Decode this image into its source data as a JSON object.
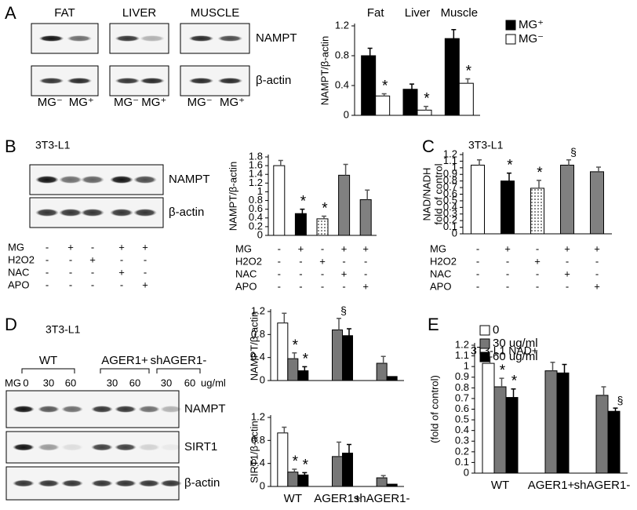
{
  "letters": [
    "A",
    "B",
    "C",
    "D",
    "E"
  ],
  "blot_a": {
    "columns": [
      "FAT",
      "LIVER",
      "MUSCLE"
    ],
    "rows": [
      "NAMPT",
      "β-actin"
    ],
    "lanes": [
      "MG⁻",
      "MG⁺",
      "MG⁻",
      "MG⁺",
      "MG⁻",
      "MG⁺"
    ]
  },
  "blot_b": {
    "title": "3T3-L1",
    "rows": [
      "NAMPT",
      "β-actin"
    ],
    "treatments": {
      "names": [
        "MG",
        "H2O2",
        "NAC",
        "APO"
      ],
      "signs": [
        [
          "-",
          "+",
          "-",
          "+",
          "+"
        ],
        [
          "-",
          "-",
          "+",
          "-",
          "-"
        ],
        [
          "-",
          "-",
          "-",
          "+",
          "-"
        ],
        [
          "-",
          "-",
          "-",
          "-",
          "+"
        ]
      ]
    }
  },
  "blot_d": {
    "title": "3T3-L1",
    "groups": [
      "WT",
      "AGER1+",
      "shAGER1-"
    ],
    "dose_name": "MG",
    "doses": [
      "0",
      "30",
      "60",
      "30",
      "60",
      "30",
      "60"
    ],
    "unit": "ug/ml",
    "rows": [
      "NAMPT",
      "SIRT1",
      "β-actin"
    ]
  },
  "chart_data": [
    {
      "type": "bar",
      "ylabel": "NAMPT/β-actin",
      "categories": [
        "Fat",
        "Liver",
        "Muscle"
      ],
      "series": [
        {
          "name": "MG⁺",
          "color": "#000000",
          "values": [
            0.8,
            0.35,
            1.03
          ],
          "errors": [
            0.1,
            0.07,
            0.12
          ]
        },
        {
          "name": "MG⁻",
          "color": "#ffffff",
          "values": [
            0.26,
            0.07,
            0.43
          ],
          "errors": [
            0.03,
            0.05,
            0.06
          ],
          "annotations": [
            "*",
            "*",
            "*"
          ]
        }
      ],
      "ylim": [
        0,
        1.2
      ],
      "yticks": [
        0,
        0.4,
        0.8,
        1.2
      ]
    },
    {
      "type": "bar",
      "ylabel": "NAMPT/β-actin",
      "series": [
        {
          "values": [
            1.6,
            0.5,
            0.38,
            1.38,
            0.82
          ],
          "errors": [
            0.12,
            0.1,
            0.06,
            0.25,
            0.22
          ],
          "colors": [
            "#ffffff",
            "#000000",
            "dots",
            "#808080",
            "#808080"
          ],
          "annotations": [
            null,
            "*",
            "*",
            null,
            null
          ]
        }
      ],
      "ylim": [
        0,
        1.8
      ],
      "yticks": [
        0,
        0.2,
        0.4,
        0.6,
        0.8,
        1,
        1.2,
        1.4,
        1.6,
        1.8
      ],
      "treatments": {
        "names": [
          "MG",
          "H2O2",
          "NAC",
          "APO"
        ],
        "signs": [
          [
            "-",
            "+",
            "-",
            "+",
            "+"
          ],
          [
            "-",
            "-",
            "+",
            "-",
            "-"
          ],
          [
            "-",
            "-",
            "-",
            "+",
            "-"
          ],
          [
            "-",
            "-",
            "-",
            "-",
            "+"
          ]
        ]
      }
    },
    {
      "type": "bar",
      "title": "3T3-L1",
      "ylabel": [
        "NAD/NADH",
        "fold of control"
      ],
      "series": [
        {
          "values": [
            1.04,
            0.8,
            0.69,
            1.04,
            0.94
          ],
          "errors": [
            0.08,
            0.12,
            0.12,
            0.08,
            0.07
          ],
          "colors": [
            "#ffffff",
            "#000000",
            "dots",
            "#808080",
            "#808080"
          ],
          "annotations": [
            null,
            "*",
            "*",
            "§",
            null
          ]
        }
      ],
      "ylim": [
        0,
        1.2
      ],
      "yticks": [
        0,
        0.1,
        0.2,
        0.3,
        0.4,
        0.5,
        0.6,
        0.7,
        0.8,
        0.9,
        1,
        1.1,
        1.2
      ],
      "treatments": {
        "names": [
          "MG",
          "H2O2",
          "NAC",
          "APO"
        ],
        "signs": [
          [
            "-",
            "+",
            "-",
            "+",
            "+"
          ],
          [
            "-",
            "-",
            "+",
            "-",
            "-"
          ],
          [
            "-",
            "-",
            "-",
            "+",
            "-"
          ],
          [
            "-",
            "-",
            "-",
            "-",
            "+"
          ]
        ]
      }
    },
    {
      "type": "bar",
      "ylabel": "NAMPT/β-actin",
      "series": [
        {
          "color": "#ffffff",
          "values": [
            1.0,
            null,
            null
          ],
          "errors": [
            0.17,
            null,
            null
          ]
        },
        {
          "color": "#777777",
          "values": [
            0.38,
            0.88,
            0.3
          ],
          "errors": [
            0.1,
            0.2,
            0.12
          ],
          "annotations": [
            "*",
            "§",
            null
          ]
        },
        {
          "color": "#000000",
          "values": [
            0.17,
            0.78,
            0.07
          ],
          "errors": [
            0.07,
            0.12,
            null
          ],
          "annotations": [
            "*",
            null,
            null
          ]
        }
      ],
      "ylim": [
        0,
        1.2
      ],
      "yticks": [
        0,
        0.4,
        0.8,
        1.2
      ]
    },
    {
      "type": "bar",
      "ylabel": "SIRT1/β-actin",
      "categories": [
        "WT",
        "AGER1+",
        "shAGER1-"
      ],
      "series": [
        {
          "color": "#ffffff",
          "values": [
            0.93,
            null,
            null
          ],
          "errors": [
            0.1,
            null,
            null
          ]
        },
        {
          "color": "#777777",
          "values": [
            0.25,
            0.52,
            0.15
          ],
          "errors": [
            0.05,
            0.25,
            0.04
          ],
          "annotations": [
            "*",
            null,
            null
          ]
        },
        {
          "color": "#000000",
          "values": [
            0.2,
            0.58,
            0.04
          ],
          "errors": [
            0.04,
            0.15,
            null
          ],
          "annotations": [
            "*",
            null,
            null
          ]
        }
      ],
      "ylim": [
        0,
        1.2
      ],
      "yticks": [
        0,
        0.4,
        0.8,
        1.2
      ]
    },
    {
      "type": "bar",
      "title": "3T3-L1  NAD+",
      "ylabel": "(fold of control)",
      "categories": [
        "WT",
        "AGER1+",
        "shAGER1-"
      ],
      "series": [
        {
          "name": "0",
          "color": "#ffffff",
          "values": [
            1.03,
            null,
            null
          ],
          "errors": [
            0.06,
            null,
            null
          ]
        },
        {
          "name": "30 ug/ml",
          "color": "#777777",
          "values": [
            0.81,
            0.96,
            0.73
          ],
          "errors": [
            0.08,
            0.08,
            0.08
          ],
          "annotations": [
            "*",
            null,
            null
          ]
        },
        {
          "name": "60 ug/ml",
          "color": "#000000",
          "values": [
            0.71,
            0.94,
            0.58
          ],
          "errors": [
            0.08,
            0.08,
            0.03
          ],
          "annotations": [
            "*",
            null,
            "§"
          ]
        }
      ],
      "ylim": [
        0,
        1.2
      ],
      "yticks": [
        0,
        0.1,
        0.2,
        0.3,
        0.4,
        0.5,
        0.6,
        0.7,
        0.8,
        0.9,
        1,
        1.1,
        1.2
      ]
    }
  ]
}
